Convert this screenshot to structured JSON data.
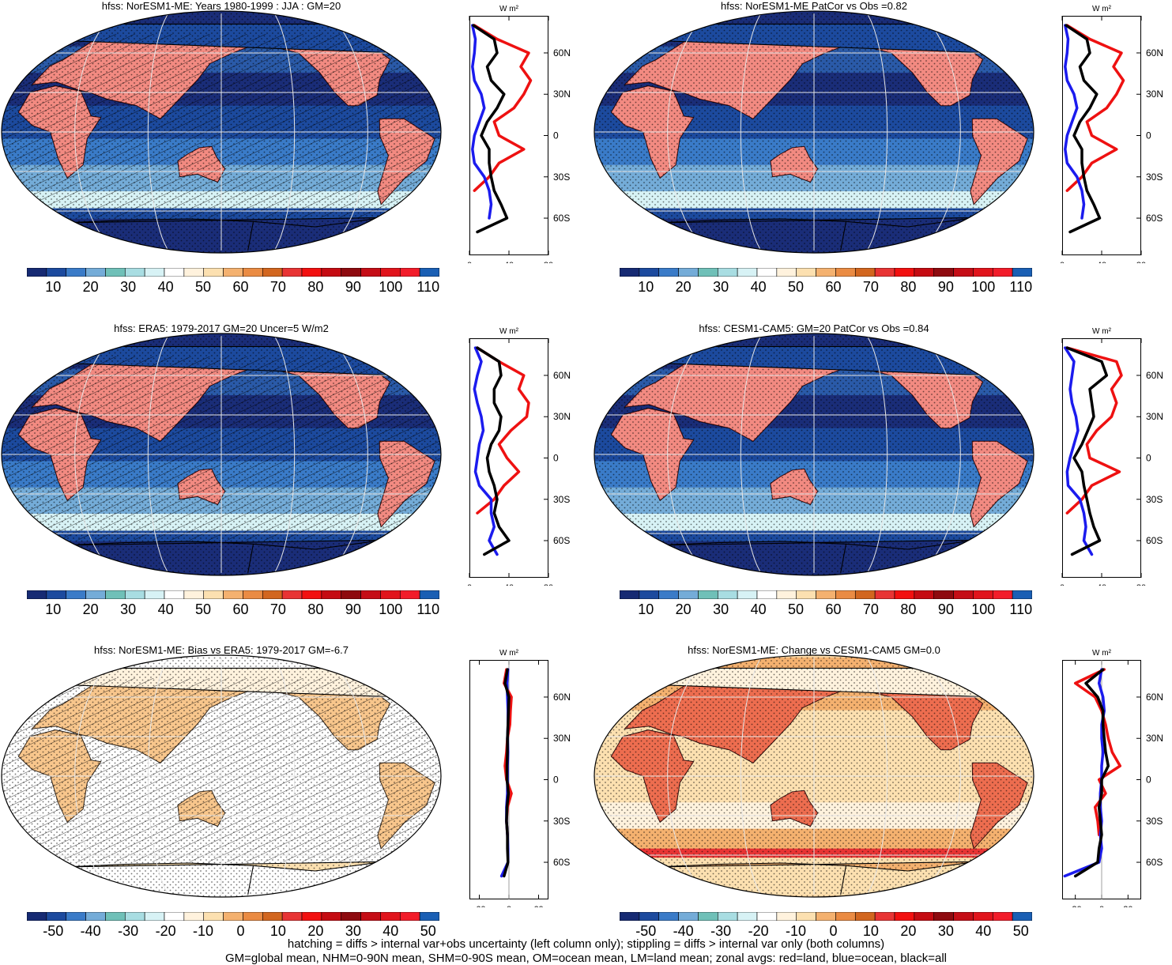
{
  "chart_data": [
    {
      "type": "heatmap",
      "title": "hfss: NorESM1-ME: Years 1980-1999 : JJA : GM=20",
      "colorbar_ticks": [
        "10",
        "20",
        "30",
        "40",
        "50",
        "60",
        "70",
        "80",
        "90",
        "100",
        "110"
      ],
      "colorbar_kind": "abs",
      "hatched": true,
      "zonal": {
        "xlim": [
          0,
          80
        ],
        "xticks": [
          "0",
          "40",
          "80"
        ],
        "unit": "W m²",
        "latticks": [
          "60N",
          "30N",
          "0",
          "30S",
          "60S"
        ],
        "lat": [
          80,
          70,
          60,
          50,
          40,
          30,
          20,
          10,
          0,
          -10,
          -20,
          -30,
          -40,
          -50,
          -60,
          -70
        ],
        "land": [
          5,
          28,
          60,
          52,
          62,
          55,
          45,
          25,
          30,
          55,
          30,
          20,
          5,
          null,
          null,
          null
        ],
        "ocean": [
          3,
          6,
          5,
          3,
          5,
          12,
          15,
          10,
          5,
          3,
          5,
          15,
          20,
          22,
          20,
          null
        ],
        "all": [
          4,
          25,
          28,
          18,
          22,
          35,
          28,
          18,
          12,
          20,
          20,
          22,
          25,
          32,
          38,
          8
        ]
      }
    },
    {
      "type": "heatmap",
      "title": "hfss: NorESM1-ME PatCor vs Obs =0.82",
      "colorbar_ticks": [
        "10",
        "20",
        "30",
        "40",
        "50",
        "60",
        "70",
        "80",
        "90",
        "100",
        "110"
      ],
      "colorbar_kind": "abs",
      "hatched": false,
      "zonal": {
        "xlim": [
          0,
          80
        ],
        "xticks": [
          "0",
          "40",
          "80"
        ],
        "unit": "W m²",
        "latticks": [
          "60N",
          "30N",
          "0",
          "30S",
          "60S"
        ],
        "lat": [
          80,
          70,
          60,
          50,
          40,
          30,
          20,
          10,
          0,
          -10,
          -20,
          -30,
          -40,
          -50,
          -60,
          -70
        ],
        "land": [
          5,
          28,
          60,
          52,
          62,
          55,
          45,
          25,
          30,
          55,
          30,
          20,
          5,
          null,
          null,
          null
        ],
        "ocean": [
          3,
          6,
          5,
          3,
          5,
          12,
          15,
          10,
          5,
          3,
          5,
          15,
          20,
          22,
          20,
          null
        ],
        "all": [
          4,
          25,
          28,
          18,
          22,
          35,
          28,
          18,
          12,
          20,
          20,
          22,
          25,
          32,
          38,
          8
        ]
      }
    },
    {
      "type": "heatmap",
      "title": "hfss: ERA5: 1979-2017 GM=20 Uncer=5 W/m2",
      "colorbar_ticks": [
        "10",
        "20",
        "30",
        "40",
        "50",
        "60",
        "70",
        "80",
        "90",
        "100",
        "110"
      ],
      "colorbar_kind": "abs",
      "hatched": true,
      "zonal": {
        "xlim": [
          0,
          80
        ],
        "xticks": [
          "0",
          "40",
          "80"
        ],
        "unit": "W m²",
        "latticks": [
          "60N",
          "30N",
          "0",
          "30S",
          "60S"
        ],
        "lat": [
          80,
          70,
          60,
          50,
          40,
          30,
          20,
          10,
          0,
          -10,
          -20,
          -30,
          -40,
          -50,
          -60,
          -70
        ],
        "land": [
          8,
          30,
          55,
          50,
          60,
          58,
          42,
          30,
          38,
          50,
          35,
          25,
          8,
          null,
          5,
          null
        ],
        "ocean": [
          6,
          12,
          8,
          5,
          8,
          12,
          14,
          10,
          8,
          6,
          10,
          22,
          22,
          25,
          20,
          28
        ],
        "all": [
          8,
          30,
          32,
          25,
          25,
          32,
          30,
          22,
          18,
          20,
          25,
          28,
          25,
          30,
          40,
          15
        ]
      }
    },
    {
      "type": "heatmap",
      "title": "hfss: CESM1-CAM5: GM=20 PatCor vs Obs =0.84",
      "colorbar_ticks": [
        "10",
        "20",
        "30",
        "40",
        "50",
        "60",
        "70",
        "80",
        "90",
        "100",
        "110"
      ],
      "colorbar_kind": "abs",
      "hatched": false,
      "zonal": {
        "xlim": [
          0,
          80
        ],
        "xticks": [
          "0",
          "40",
          "80"
        ],
        "unit": "W m²",
        "latticks": [
          "60N",
          "30N",
          "0",
          "30S",
          "60S"
        ],
        "lat": [
          80,
          70,
          60,
          50,
          40,
          30,
          20,
          10,
          0,
          -10,
          -20,
          -30,
          -40,
          -50,
          -60,
          -70
        ],
        "land": [
          5,
          55,
          60,
          50,
          55,
          50,
          35,
          25,
          28,
          58,
          30,
          20,
          5,
          null,
          null,
          null
        ],
        "ocean": [
          3,
          12,
          10,
          8,
          10,
          14,
          16,
          12,
          8,
          5,
          6,
          18,
          22,
          24,
          22,
          30
        ],
        "all": [
          5,
          40,
          45,
          28,
          30,
          32,
          26,
          20,
          12,
          20,
          22,
          25,
          28,
          32,
          38,
          10
        ]
      }
    },
    {
      "type": "heatmap",
      "title": "hfss: NorESM1-ME: Bias vs ERA5: 1979-2017 GM=-6.7",
      "colorbar_ticks": [
        "-50",
        "-40",
        "-30",
        "-20",
        "-10",
        "0",
        "10",
        "20",
        "30",
        "40",
        "50"
      ],
      "colorbar_kind": "diff",
      "hatched": true,
      "zonal": {
        "xlim": [
          -80,
          80
        ],
        "xticks": [
          "-60",
          "0",
          "60"
        ],
        "unit": "W m²",
        "latticks": [
          "60N",
          "30N",
          "0",
          "30S",
          "60S"
        ],
        "lat": [
          80,
          70,
          60,
          50,
          40,
          30,
          20,
          10,
          0,
          -10,
          -20,
          -30,
          -40,
          -50,
          -60,
          -70
        ],
        "land": [
          -5,
          -10,
          5,
          3,
          2,
          -3,
          -5,
          -8,
          -5,
          5,
          -3,
          -5,
          -3,
          null,
          -5,
          null
        ],
        "ocean": [
          -2,
          -4,
          -3,
          -2,
          -2,
          -3,
          -2,
          -3,
          -3,
          -3,
          -5,
          -5,
          -3,
          -2,
          -2,
          -15
        ],
        "all": [
          -3,
          -8,
          0,
          -1,
          -2,
          -3,
          -3,
          -4,
          -4,
          -1,
          -4,
          -5,
          -3,
          -3,
          -2,
          -10
        ]
      }
    },
    {
      "type": "heatmap",
      "title": "hfss: NorESM1-ME: Change vs CESM1-CAM5 GM=0.0",
      "colorbar_ticks": [
        "-50",
        "-40",
        "-30",
        "-20",
        "-10",
        "0",
        "10",
        "20",
        "30",
        "40",
        "50"
      ],
      "colorbar_kind": "diff",
      "hatched": false,
      "zonal": {
        "xlim": [
          -30,
          30
        ],
        "xticks": [
          "-20",
          "0",
          "20"
        ],
        "unit": "W m²",
        "latticks": [
          "60N",
          "30N",
          "0",
          "30S",
          "60S"
        ],
        "lat": [
          80,
          70,
          60,
          50,
          40,
          30,
          20,
          10,
          0,
          -10,
          -20,
          -30,
          -40,
          -50,
          -60,
          -70
        ],
        "land": [
          2,
          -20,
          -5,
          0,
          3,
          5,
          8,
          14,
          -2,
          3,
          -5,
          -3,
          -2,
          null,
          -5,
          null
        ],
        "ocean": [
          0,
          -2,
          1,
          2,
          0,
          0,
          1,
          0,
          0,
          -1,
          -1,
          0,
          -1,
          0,
          -2,
          -28
        ],
        "all": [
          1,
          -12,
          -3,
          1,
          1,
          2,
          3,
          5,
          0,
          0,
          -2,
          -1,
          0,
          -2,
          -3,
          -20
        ]
      }
    }
  ],
  "footer": {
    "line1": "hatching = diffs > internal var+obs uncertainty (left column only); stippling = diffs > internal var only (both columns)",
    "line2": "GM=global mean, NHM=0-90N mean, SHM=0-90S mean, OM=ocean mean, LM=land mean; zonal avgs: red=land, blue=ocean, black=all"
  },
  "colors": {
    "abs_palette": [
      "#162a73",
      "#1c4a9e",
      "#3a7bc8",
      "#74acd8",
      "#6fc0b8",
      "#a8dde2",
      "#d7f2f5",
      "#ffffff",
      "#fff2dd",
      "#fce0b0",
      "#f4b16f",
      "#ea8b43",
      "#d2661f",
      "#e83434",
      "#f21010",
      "#c50b12",
      "#8e0a0f",
      "#c50d16",
      "#e1141c",
      "#f21c2a",
      "#1a5fb4"
    ],
    "diff_palette": [
      "#162a73",
      "#1c4a9e",
      "#3a7bc8",
      "#74acd8",
      "#6fc0b8",
      "#a8dde2",
      "#d7f2f5",
      "#ffffff",
      "#fff2dd",
      "#fce0b0",
      "#f4b16f",
      "#ea8b43",
      "#d2661f",
      "#e83434",
      "#f21010",
      "#c50b12",
      "#8e0a0f",
      "#c50d16",
      "#e1141c",
      "#f21c2a",
      "#1a5fb4"
    ],
    "land": "#ee1111",
    "ocean": "#1b1bee",
    "all": "#000000"
  }
}
